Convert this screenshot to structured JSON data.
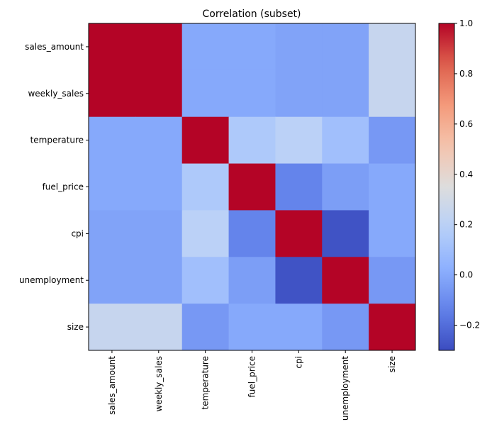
{
  "chart_data": {
    "type": "heatmap",
    "title": "Correlation (subset)",
    "xlabel": "",
    "ylabel": "",
    "colormap": "coolwarm",
    "vmin": -0.3,
    "vmax": 1.0,
    "colorbar_ticks": [
      -0.2,
      0.0,
      0.2,
      0.4,
      0.6,
      0.8,
      1.0
    ],
    "colorbar_tick_labels": [
      "−0.2",
      "0.0",
      "0.2",
      "0.4",
      "0.6",
      "0.8",
      "1.0"
    ],
    "x_categories": [
      "sales_amount",
      "weekly_sales",
      "temperature",
      "fuel_price",
      "cpi",
      "unemployment",
      "size"
    ],
    "y_categories": [
      "sales_amount",
      "weekly_sales",
      "temperature",
      "fuel_price",
      "cpi",
      "unemployment",
      "size"
    ],
    "matrix": [
      [
        1.0,
        1.0,
        0.0,
        0.0,
        -0.02,
        -0.02,
        0.25
      ],
      [
        1.0,
        1.0,
        0.0,
        0.0,
        -0.02,
        -0.02,
        0.25
      ],
      [
        0.0,
        0.0,
        1.0,
        0.15,
        0.2,
        0.1,
        -0.06
      ],
      [
        0.0,
        0.0,
        0.15,
        1.0,
        -0.13,
        -0.04,
        0.0
      ],
      [
        -0.02,
        -0.02,
        0.2,
        -0.13,
        1.0,
        -0.28,
        0.0
      ],
      [
        -0.02,
        -0.02,
        0.1,
        -0.04,
        -0.28,
        1.0,
        -0.06
      ],
      [
        0.25,
        0.25,
        -0.06,
        0.0,
        0.0,
        -0.06,
        1.0
      ]
    ],
    "grid": false
  }
}
